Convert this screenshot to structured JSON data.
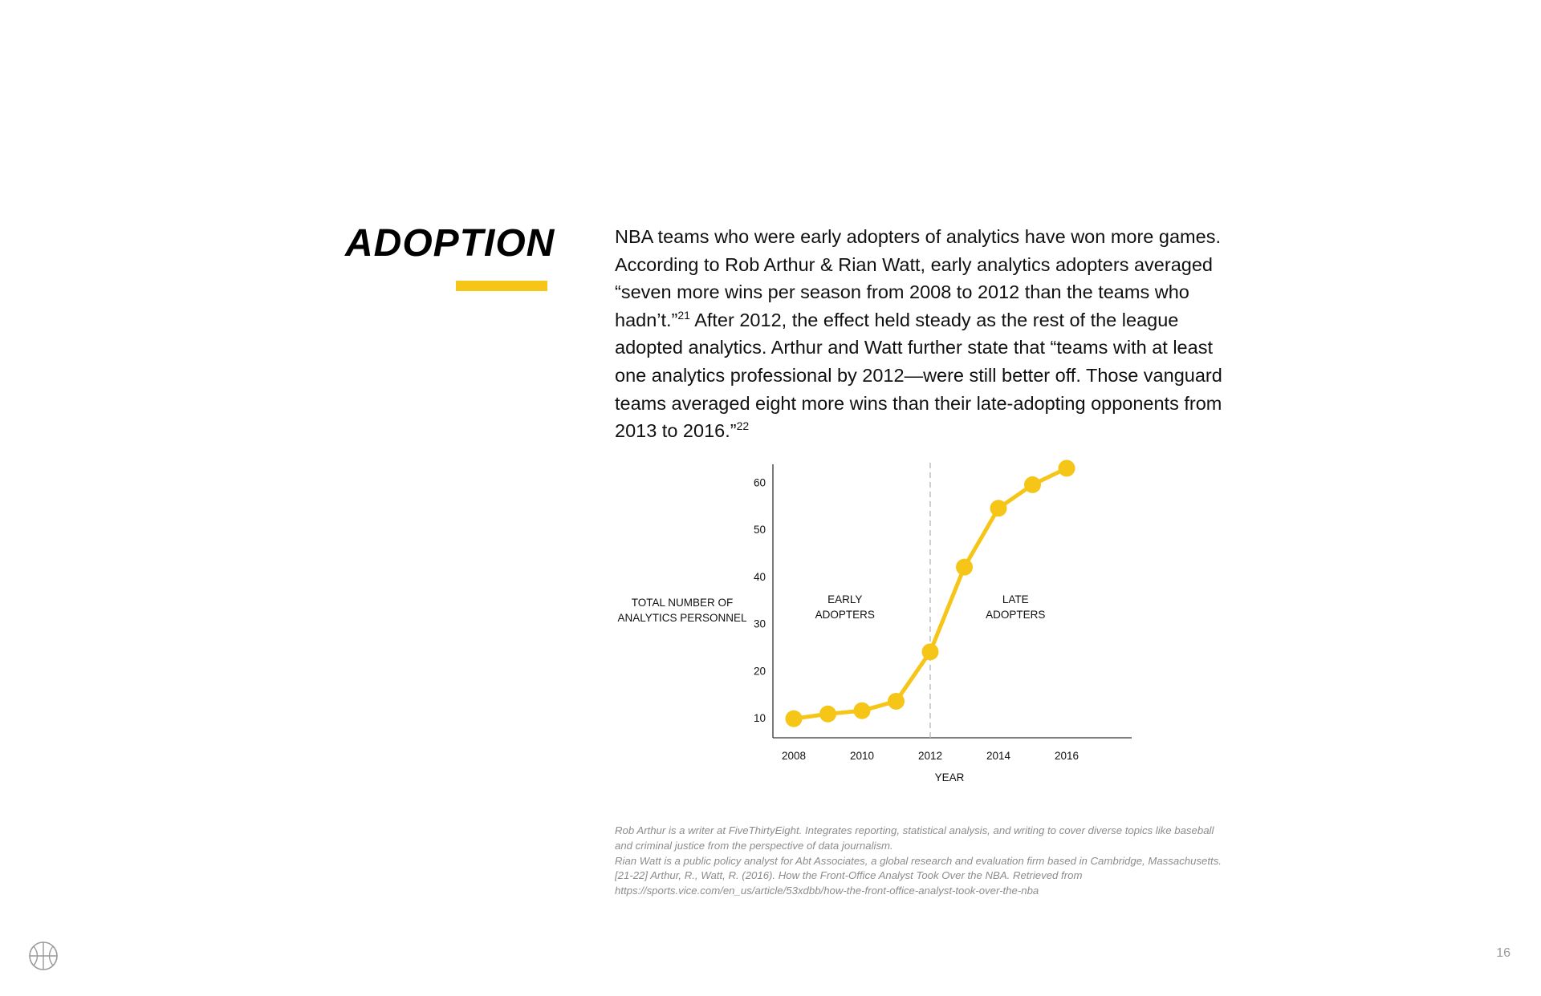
{
  "heading": "ADOPTION",
  "body": {
    "part1": "NBA teams who were early adopters of analytics have won more games. According to Rob Arthur & Rian Watt, early analytics adopters averaged “seven more wins per season from 2008 to 2012 than the teams who hadn’t.”",
    "ref1": "21",
    "part2": " After 2012, the effect held steady as the rest of the league adopted analytics. Arthur and Watt further state that “teams with at least one analytics professional by 2012—were still better off. Those vanguard teams averaged eight more wins than their late-adopting opponents from 2013 to 2016.”",
    "ref2": "22"
  },
  "chart_data": {
    "type": "line",
    "x": [
      2008,
      2009,
      2010,
      2011,
      2012,
      2013,
      2014,
      2015,
      2016
    ],
    "series": [
      {
        "values": [
          9.8,
          10.8,
          11.5,
          13.5,
          24,
          42,
          54.5,
          59.5,
          63
        ]
      }
    ],
    "x_ticks": [
      2008,
      2010,
      2012,
      2014,
      2016
    ],
    "y_ticks": [
      10,
      20,
      30,
      40,
      50,
      60
    ],
    "xlabel": "YEAR",
    "ylabel_lines": [
      "TOTAL NUMBER OF",
      "ANALYTICS PERSONNEL"
    ],
    "divider_x": 2012,
    "region_labels": [
      {
        "x": 2009.5,
        "lines": [
          "EARLY",
          "ADOPTERS"
        ]
      },
      {
        "x": 2014.5,
        "lines": [
          "LATE",
          "ADOPTERS"
        ]
      }
    ],
    "grid": false,
    "line_color": "#f5c518"
  },
  "footnotes": [
    "Rob Arthur is a writer at FiveThirtyEight. Integrates reporting, statistical analysis, and writing to cover diverse topics like baseball and criminal justice from the perspective of data journalism.",
    "Rian Watt is a public policy analyst for Abt Associates, a global research and evaluation firm based in Cambridge, Massachusetts.",
    "[21-22] Arthur, R., Watt, R. (2016). How the Front-Office Analyst Took Over the NBA. Retrieved from https://sports.vice.com/en_us/article/53xdbb/how-the-front-office-analyst-took-over-the-nba"
  ],
  "logo_icon": "basketball-icon",
  "page_number": "16"
}
